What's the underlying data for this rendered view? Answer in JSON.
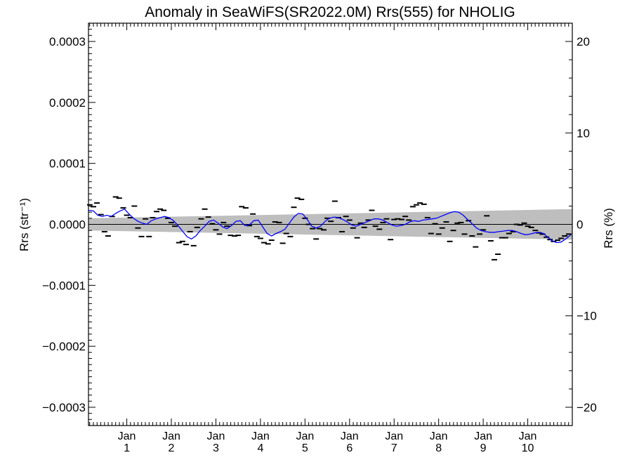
{
  "chart_data": {
    "type": "line",
    "title": "Anomaly in SeaWiFS(SR2022.0M) Rrs(555) for NHOLIG",
    "ylabel_left": "Rrs (str⁻¹)",
    "ylabel_right": "Rrs (%)",
    "x_range": [
      0.14,
      11.0
    ],
    "xticks": [
      {
        "x": 1,
        "label_top": "Jan",
        "label_bottom": "1"
      },
      {
        "x": 2,
        "label_top": "Jan",
        "label_bottom": "2"
      },
      {
        "x": 3,
        "label_top": "Jan",
        "label_bottom": "3"
      },
      {
        "x": 4,
        "label_top": "Jan",
        "label_bottom": "4"
      },
      {
        "x": 5,
        "label_top": "Jan",
        "label_bottom": "5"
      },
      {
        "x": 6,
        "label_top": "Jan",
        "label_bottom": "6"
      },
      {
        "x": 7,
        "label_top": "Jan",
        "label_bottom": "7"
      },
      {
        "x": 8,
        "label_top": "Jan",
        "label_bottom": "8"
      },
      {
        "x": 9,
        "label_top": "Jan",
        "label_bottom": "9"
      },
      {
        "x": 10,
        "label_top": "Jan",
        "label_bottom": "10"
      }
    ],
    "y_left_range": [
      -0.00033,
      0.00033
    ],
    "y_left_ticks": [
      {
        "v": 0.0003,
        "label": "0.0003"
      },
      {
        "v": 0.0002,
        "label": "0.0002"
      },
      {
        "v": 0.0001,
        "label": "0.0001"
      },
      {
        "v": 0.0,
        "label": "0.0000"
      },
      {
        "v": -0.0001,
        "label": "−0.0001"
      },
      {
        "v": -0.0002,
        "label": "−0.0002"
      },
      {
        "v": -0.0003,
        "label": "−0.0003"
      }
    ],
    "y_right_range": [
      -22,
      22
    ],
    "y_right_ticks": [
      {
        "v": 20,
        "label": "20"
      },
      {
        "v": 10,
        "label": "10"
      },
      {
        "v": 0,
        "label": "0"
      },
      {
        "v": -10,
        "label": "−10"
      },
      {
        "v": -20,
        "label": "−20"
      }
    ],
    "zero_line": 0.0,
    "band": {
      "x": [
        0.14,
        11.0
      ],
      "upper": [
        1e-05,
        2.5e-05
      ],
      "lower": [
        -1e-05,
        -2.5e-05
      ],
      "color": "#bebebe"
    },
    "monthly_points": {
      "x": [
        0.17,
        0.25,
        0.33,
        0.42,
        0.5,
        0.58,
        0.67,
        0.75,
        0.83,
        0.92,
        1.0,
        1.08,
        1.17,
        1.25,
        1.33,
        1.42,
        1.5,
        1.58,
        1.67,
        1.75,
        1.83,
        1.92,
        2.0,
        2.08,
        2.17,
        2.25,
        2.33,
        2.42,
        2.5,
        2.58,
        2.67,
        2.75,
        2.83,
        2.92,
        3.0,
        3.08,
        3.17,
        3.25,
        3.33,
        3.42,
        3.5,
        3.58,
        3.67,
        3.75,
        3.83,
        3.92,
        4.0,
        4.08,
        4.17,
        4.25,
        4.33,
        4.42,
        4.5,
        4.58,
        4.67,
        4.75,
        4.83,
        4.92,
        5.0,
        5.08,
        5.17,
        5.25,
        5.33,
        5.42,
        5.5,
        5.58,
        5.67,
        5.75,
        5.83,
        5.92,
        6.0,
        6.08,
        6.17,
        6.25,
        6.33,
        6.42,
        6.5,
        6.58,
        6.67,
        6.75,
        6.83,
        6.92,
        7.0,
        7.08,
        7.17,
        7.25,
        7.33,
        7.42,
        7.5,
        7.58,
        7.67,
        7.75,
        7.83,
        7.92,
        8.0,
        8.08,
        8.17,
        8.25,
        8.33,
        8.42,
        8.5,
        8.58,
        8.67,
        8.75,
        8.83,
        8.92,
        9.0,
        9.08,
        9.17,
        9.25,
        9.33,
        9.42,
        9.5,
        9.58,
        9.67,
        9.75,
        9.83,
        9.92,
        10.0,
        10.08,
        10.17,
        10.25,
        10.33,
        10.42,
        10.5,
        10.58,
        10.67,
        10.75,
        10.83,
        10.92
      ],
      "y": [
        3.2e-05,
        2.9e-05,
        3.5e-05,
        1.6e-05,
        -1.2e-05,
        -1.9e-05,
        1.3e-05,
        4.5e-05,
        4.3e-05,
        2.7e-05,
        1.5e-05,
        1.1e-05,
        3e-05,
        -6e-06,
        -2e-05,
        9e-06,
        -2e-05,
        1.1e-05,
        2.1e-05,
        2.5e-05,
        2.3e-05,
        1e-05,
        3e-06,
        -3e-06,
        -3e-05,
        -2.8e-05,
        -3.3e-05,
        -1.2e-05,
        -3.5e-05,
        -5e-06,
        9e-06,
        2.5e-05,
        1.2e-05,
        1e-06,
        -9e-06,
        -1.6e-05,
        3e-06,
        -3e-06,
        -1.8e-05,
        -1.9e-05,
        -1.8e-05,
        2.9e-05,
        2.7e-05,
        -2e-06,
        1.7e-05,
        -2e-05,
        -2.3e-05,
        -3e-05,
        -3.2e-05,
        -2.6e-05,
        4e-06,
        3e-06,
        -3.1e-05,
        -1.5e-05,
        -2e-05,
        2.8e-05,
        4.3e-05,
        4.1e-05,
        1e-05,
        0.0,
        -7e-06,
        -2.4e-05,
        -7e-06,
        -9e-06,
        1e-05,
        5e-06,
        3.8e-05,
        1.1e-05,
        -1.2e-05,
        1.3e-05,
        7e-06,
        -6e-06,
        -2.2e-05,
        2e-06,
        -5e-06,
        7e-06,
        2.3e-05,
        -3e-06,
        -8e-06,
        3e-06,
        9e-06,
        -2.5e-05,
        8e-06,
        9e-06,
        8e-06,
        1.3e-05,
        7e-06,
        2.9e-05,
        3.2e-05,
        3.5e-05,
        3.3e-05,
        1.1e-05,
        -1.5e-05,
        1e-06,
        -1.6e-05,
        -6e-06,
        4e-06,
        -2.8e-05,
        -1e-05,
        2e-06,
        3e-06,
        -1.6e-05,
        6e-06,
        -1.9e-05,
        -3.7e-05,
        -1.6e-05,
        -9e-06,
        1.4e-05,
        -2.7e-05,
        -5.8e-05,
        -4.9e-05,
        -2.2e-05,
        -2.2e-05,
        -1.5e-05,
        -1.2e-05,
        0.0,
        -1e-06,
        2e-06,
        -3e-06,
        -5e-06,
        -1e-05,
        -1.4e-05,
        -1.6e-05,
        -2.1e-05,
        -2.5e-05,
        -2.8e-05,
        -2.6e-05,
        -2.3e-05,
        -1.9e-05,
        -1.6e-05
      ]
    },
    "smoothed_line": {
      "color": "#0000ff",
      "x": [
        0.14,
        0.25,
        0.35,
        0.45,
        0.55,
        0.65,
        0.75,
        0.85,
        0.95,
        1.05,
        1.15,
        1.25,
        1.35,
        1.45,
        1.55,
        1.65,
        1.75,
        1.85,
        1.95,
        2.05,
        2.15,
        2.25,
        2.35,
        2.45,
        2.55,
        2.65,
        2.75,
        2.85,
        2.95,
        3.05,
        3.15,
        3.25,
        3.35,
        3.45,
        3.55,
        3.65,
        3.75,
        3.85,
        3.95,
        4.05,
        4.15,
        4.25,
        4.35,
        4.45,
        4.55,
        4.65,
        4.75,
        4.85,
        4.95,
        5.05,
        5.15,
        5.25,
        5.35,
        5.45,
        5.55,
        5.65,
        5.75,
        5.85,
        5.95,
        6.05,
        6.15,
        6.25,
        6.35,
        6.45,
        6.55,
        6.65,
        6.75,
        6.85,
        6.95,
        7.05,
        7.15,
        7.25,
        7.35,
        7.45,
        7.55,
        7.65,
        7.75,
        7.85,
        7.95,
        8.05,
        8.15,
        8.25,
        8.35,
        8.45,
        8.55,
        8.65,
        8.75,
        8.85,
        8.95,
        9.05,
        9.15,
        9.25,
        9.35,
        9.45,
        9.55,
        9.65,
        9.75,
        9.85,
        9.95,
        10.05,
        10.15,
        10.25,
        10.35,
        10.45,
        10.55,
        10.65,
        10.75,
        10.85,
        10.97
      ],
      "y": [
        2.3e-05,
        2.2e-05,
        1.5e-05,
        1.3e-05,
        1.5e-05,
        1.3e-05,
        1.8e-05,
        2.2e-05,
        2.5e-05,
        1.7e-05,
        1e-05,
        5e-06,
        2e-06,
        0.0,
        6e-06,
        9e-06,
        1.1e-05,
        1.3e-05,
        1.1e-05,
        6e-06,
        -2e-06,
        -1.1e-05,
        -2e-05,
        -2.4e-05,
        -1.9e-05,
        -1e-05,
        -3e-06,
        5e-06,
        7e-06,
        2e-06,
        -4e-06,
        -7e-06,
        -2e-06,
        5e-06,
        6e-06,
        -2e-06,
        -1e-06,
        6e-06,
        7e-06,
        -4e-06,
        -1.5e-05,
        -1.9e-05,
        -1.5e-05,
        -1.2e-05,
        -8e-06,
        2e-06,
        1.2e-05,
        1.8e-05,
        1.7e-05,
        8e-06,
        -3e-06,
        -6e-06,
        -3e-06,
        5e-06,
        1e-05,
        1.2e-05,
        1.1e-05,
        8e-06,
        4e-06,
        -1e-06,
        -3e-06,
        0.0,
        3e-06,
        6e-06,
        9e-06,
        9e-06,
        7e-06,
        3e-06,
        -1e-06,
        -3e-06,
        -2e-06,
        0.0,
        4e-06,
        6e-06,
        5e-06,
        7e-06,
        8e-06,
        9e-06,
        1e-05,
        1.3e-05,
        1.6e-05,
        1.9e-05,
        2.1e-05,
        2e-05,
        1.5e-05,
        8e-06,
        1e-06,
        -6e-06,
        -1e-05,
        -1.2e-05,
        -1.3e-05,
        -1.3e-05,
        -1.2e-05,
        -1.1e-05,
        -1e-05,
        -1e-05,
        -1.2e-05,
        -1.5e-05,
        -1.7e-05,
        -1.6e-05,
        -1.4e-05,
        -1.3e-05,
        -1.5e-05,
        -2.1e-05,
        -2.7e-05,
        -3e-05,
        -2.9e-05,
        -2.4e-05,
        -1.7e-05
      ]
    }
  }
}
